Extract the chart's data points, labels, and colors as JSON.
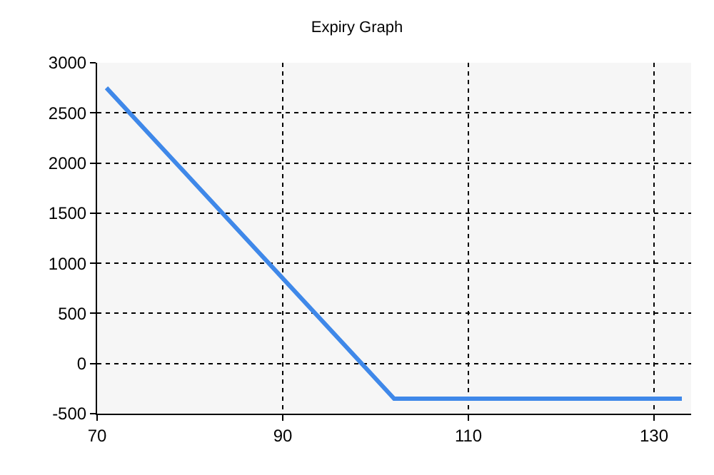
{
  "chart_data": {
    "type": "line",
    "title": "Expiry Graph",
    "x": [
      71,
      102,
      133
    ],
    "series": [
      {
        "color": "#3f88e9",
        "values": [
          2750,
          -350,
          -350
        ]
      }
    ],
    "xlim": [
      70,
      134
    ],
    "xticks": [
      70,
      90,
      110,
      130
    ],
    "ylim": [
      -500,
      3000
    ],
    "yticks": [
      -500,
      0,
      500,
      1000,
      1500,
      2000,
      2500,
      3000
    ],
    "grid": true,
    "marker": "none",
    "line_style": "solid"
  }
}
